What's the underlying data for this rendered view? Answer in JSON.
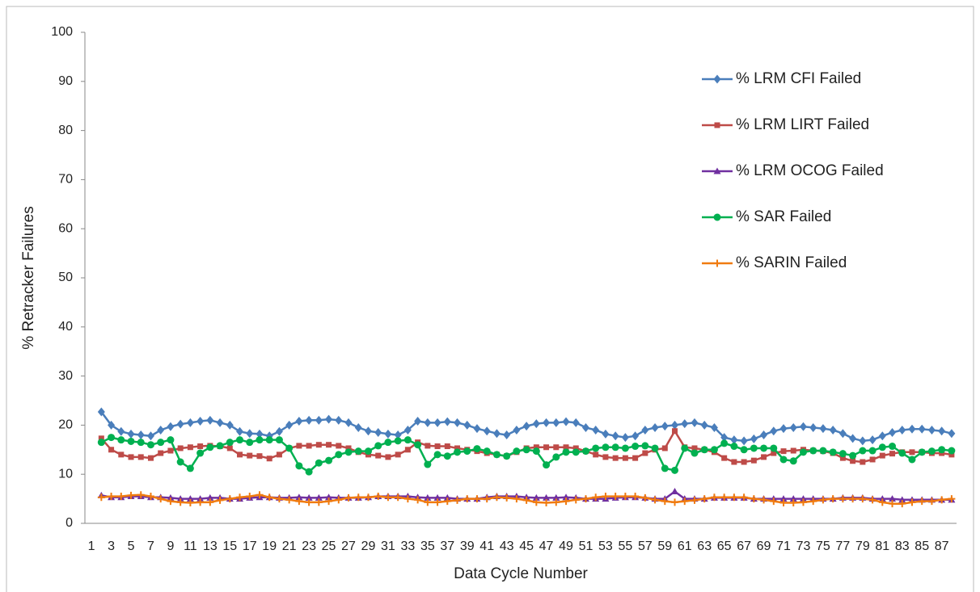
{
  "chart_data": {
    "type": "line",
    "y_label": "% Retracker Failures",
    "x_label": "Data Cycle Number",
    "categories": [
      1,
      null,
      3,
      null,
      5,
      null,
      7,
      null,
      9,
      null,
      11,
      null,
      13,
      null,
      15,
      null,
      17,
      null,
      19,
      null,
      21,
      null,
      23,
      null,
      25,
      null,
      27,
      null,
      29,
      null,
      31,
      null,
      33,
      null,
      35,
      null,
      37,
      null,
      39,
      null,
      41,
      null,
      43,
      null,
      45,
      null,
      47,
      null,
      49,
      null,
      51,
      null,
      53,
      null,
      55,
      null,
      57,
      null,
      59,
      null,
      61,
      null,
      63,
      null,
      65,
      null,
      67,
      null,
      69,
      null,
      71,
      null,
      73,
      null,
      75,
      null,
      77,
      null,
      79,
      null,
      81,
      null,
      83,
      null,
      85,
      null,
      87,
      null
    ],
    "ylim": [
      0,
      100
    ],
    "yticks": [
      0,
      10,
      20,
      30,
      40,
      50,
      60,
      70,
      80,
      90,
      100
    ],
    "grid": false,
    "legend": "top-right",
    "series": [
      {
        "name": "% LRM CFI Failed",
        "color": "#4a7ebb",
        "marker": "diamond",
        "values": [
          null,
          22.7,
          20,
          18.7,
          18.2,
          18,
          17.8,
          19,
          19.7,
          20.2,
          20.5,
          20.8,
          21,
          20.5,
          20,
          18.7,
          18.3,
          18.2,
          17.8,
          18.7,
          20,
          20.8,
          21,
          21,
          21.2,
          21,
          20.5,
          19.5,
          18.8,
          18.5,
          18.2,
          18,
          19,
          20.8,
          20.5,
          20.5,
          20.7,
          20.5,
          20,
          19.3,
          18.8,
          18.3,
          18,
          19,
          19.8,
          20.3,
          20.5,
          20.5,
          20.7,
          20.5,
          19.5,
          19,
          18.2,
          17.8,
          17.5,
          17.8,
          19,
          19.5,
          19.8,
          20,
          20.3,
          20.5,
          20,
          19.5,
          17.5,
          17,
          16.8,
          17.2,
          18,
          18.8,
          19.3,
          19.5,
          19.7,
          19.5,
          19.3,
          19,
          18.3,
          17.3,
          16.8,
          17,
          17.8,
          18.5,
          19,
          19.2,
          19.2,
          19,
          18.8,
          18.3
        ]
      },
      {
        "name": "% LRM LIRT Failed",
        "color": "#be4b48",
        "marker": "square",
        "values": [
          null,
          17.3,
          15,
          14,
          13.5,
          13.5,
          13.3,
          14.3,
          14.8,
          15.3,
          15.5,
          15.7,
          15.8,
          15.7,
          15.3,
          14,
          13.8,
          13.7,
          13.2,
          14,
          15.3,
          15.8,
          15.8,
          16,
          16,
          15.8,
          15.3,
          14.5,
          14,
          13.8,
          13.5,
          14,
          15,
          16.5,
          15.8,
          15.7,
          15.7,
          15.3,
          15,
          14.7,
          14.3,
          14,
          13.7,
          14.5,
          15.3,
          15.5,
          15.5,
          15.5,
          15.5,
          15.3,
          14.7,
          14,
          13.5,
          13.3,
          13.3,
          13.3,
          14.3,
          15,
          15.3,
          18.8,
          15.5,
          15.3,
          15,
          14.5,
          13.3,
          12.5,
          12.5,
          12.8,
          13.5,
          14.3,
          14.7,
          14.8,
          15,
          14.8,
          14.7,
          14.3,
          13.3,
          12.7,
          12.5,
          13,
          13.8,
          14.2,
          14.5,
          14.5,
          14.5,
          14.3,
          14.3,
          14
        ]
      },
      {
        "name": "% LRM OCOG Failed",
        "color": "#7030a0",
        "marker": "triangle",
        "values": [
          null,
          5.7,
          5.3,
          5.3,
          5.5,
          5.5,
          5.3,
          5.3,
          5.2,
          5,
          5,
          5,
          5.2,
          5.2,
          5,
          5,
          5.2,
          5.3,
          5.3,
          5.2,
          5.2,
          5.3,
          5.2,
          5.2,
          5.3,
          5.2,
          5.2,
          5.2,
          5.3,
          5.5,
          5.5,
          5.5,
          5.5,
          5.3,
          5.2,
          5.2,
          5.2,
          5,
          5,
          5,
          5.3,
          5.5,
          5.5,
          5.5,
          5.3,
          5.2,
          5.2,
          5.2,
          5.3,
          5.2,
          5,
          5,
          5,
          5.2,
          5.3,
          5.3,
          5.2,
          5,
          5,
          6.5,
          5,
          5,
          5,
          5.2,
          5.2,
          5.2,
          5.2,
          5,
          5,
          5,
          5,
          5,
          5,
          5,
          5,
          5,
          5.2,
          5.2,
          5.2,
          5,
          5,
          5,
          4.8,
          4.8,
          4.8,
          4.8,
          4.8,
          4.8
        ]
      },
      {
        "name": "% SAR Failed",
        "color": "#00b050",
        "marker": "circle",
        "values": [
          null,
          16.5,
          17.5,
          17,
          16.7,
          16.5,
          16,
          16.5,
          17,
          12.5,
          11.2,
          14.3,
          15.5,
          15.8,
          16.5,
          17,
          16.5,
          17,
          17,
          17,
          15.3,
          11.7,
          10.5,
          12.3,
          12.8,
          14,
          14.5,
          14.7,
          14.7,
          15.8,
          16.5,
          16.8,
          17,
          16,
          12,
          14,
          13.7,
          14.5,
          14.7,
          15.2,
          14.7,
          14,
          13.7,
          14.7,
          15,
          14.7,
          11.9,
          13.5,
          14.5,
          14.5,
          14.7,
          15.3,
          15.5,
          15.5,
          15.3,
          15.7,
          15.8,
          15.3,
          11.2,
          10.8,
          15.3,
          14.3,
          15,
          15,
          16.3,
          15.7,
          15,
          15.3,
          15.3,
          15.3,
          13,
          12.7,
          14.5,
          14.8,
          14.8,
          14.5,
          14.2,
          13.8,
          14.8,
          14.8,
          15.5,
          15.7,
          14.3,
          13,
          14.5,
          14.7,
          15,
          14.8
        ]
      },
      {
        "name": "% SARIN Failed",
        "color": "#f07b10",
        "marker": "plus",
        "values": [
          null,
          5.3,
          5.5,
          5.5,
          5.7,
          5.8,
          5.5,
          5,
          4.5,
          4.3,
          4.2,
          4.3,
          4.3,
          4.7,
          5,
          5.3,
          5.5,
          5.8,
          5.3,
          5,
          4.8,
          4.5,
          4.3,
          4.3,
          4.5,
          4.8,
          5.2,
          5.3,
          5.3,
          5.5,
          5.3,
          5.3,
          5,
          4.8,
          4.3,
          4.3,
          4.5,
          4.7,
          5,
          5,
          5,
          5.3,
          5.2,
          5,
          4.7,
          4.3,
          4.2,
          4.3,
          4.5,
          4.8,
          5,
          5.3,
          5.5,
          5.5,
          5.5,
          5.5,
          5.2,
          4.8,
          4.5,
          4.3,
          4.5,
          4.7,
          5,
          5.3,
          5.3,
          5.3,
          5.3,
          5,
          4.8,
          4.5,
          4.2,
          4.2,
          4.3,
          4.5,
          4.8,
          5,
          5,
          5,
          5,
          4.8,
          4.3,
          4,
          4,
          4.3,
          4.5,
          4.5,
          4.8,
          5
        ]
      }
    ]
  }
}
